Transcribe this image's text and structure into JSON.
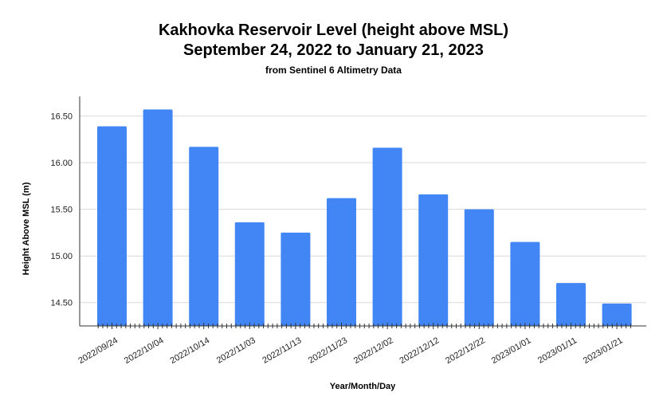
{
  "chart_data": {
    "type": "bar",
    "title": "Kakhovka Reservoir Level (height above MSL)",
    "subtitle_line": "September 24, 2022 to January 21, 2023",
    "caption": "from Sentinel 6 Altimetry Data",
    "xlabel": "Year/Month/Day",
    "ylabel": "Height Above MSL (m)",
    "categories": [
      "2022/09/24",
      "2022/10/04",
      "2022/10/14",
      "2022/11/03",
      "2022/11/13",
      "2022/11/23",
      "2022/12/02",
      "2022/12/12",
      "2022/12/22",
      "2023/01/01",
      "2023/01/11",
      "2023/01/21"
    ],
    "values": [
      16.39,
      16.57,
      16.17,
      15.36,
      15.25,
      15.62,
      16.16,
      15.66,
      15.5,
      15.15,
      14.71,
      14.49
    ],
    "ylim": [
      14.25,
      16.71
    ],
    "yticks": [
      "14.50",
      "15.00",
      "15.50",
      "16.00",
      "16.50"
    ],
    "grid": true,
    "bar_color": "#4285f4"
  }
}
